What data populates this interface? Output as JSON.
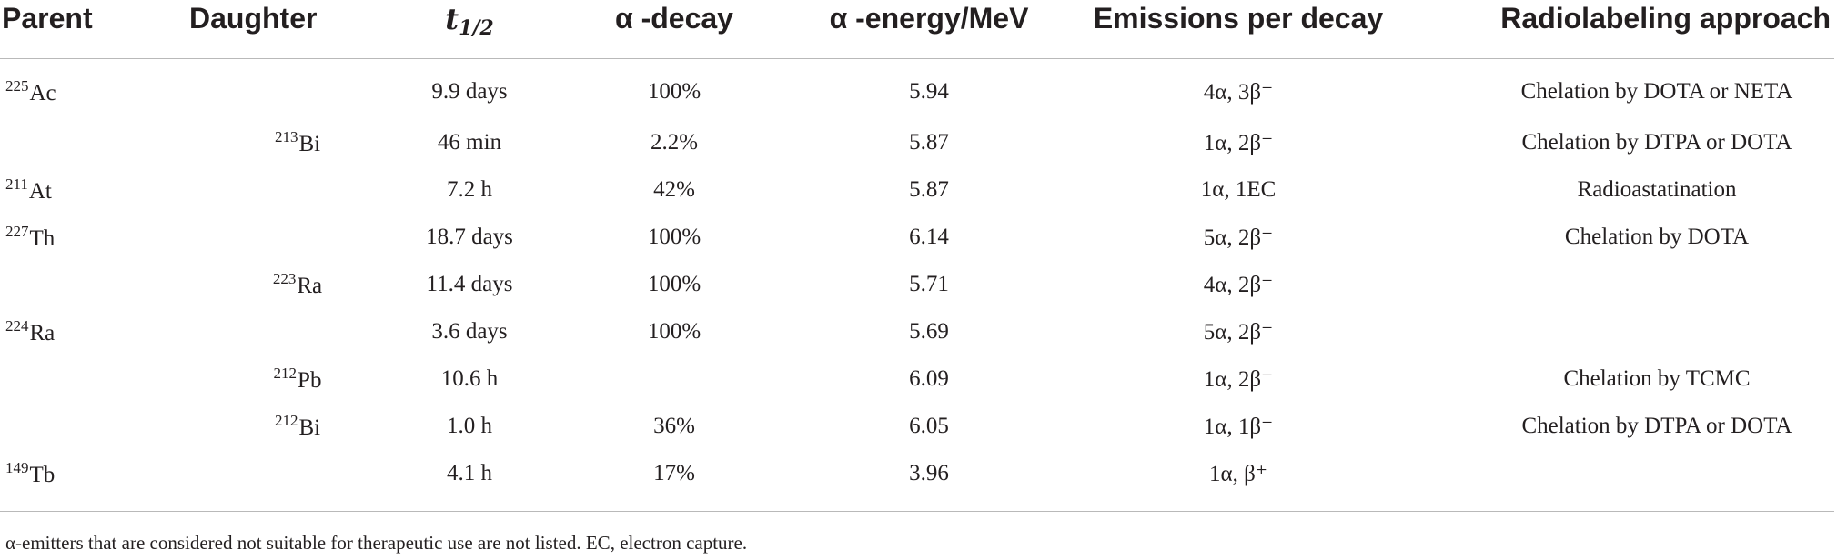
{
  "columns": {
    "parent": "Parent",
    "daughter": "Daughter",
    "half_life_symbol": "t",
    "half_life_sub": "1/2",
    "alpha_decay": "α -decay",
    "alpha_energy": "α -energy/MeV",
    "emissions": "Emissions per decay",
    "approach": "Radiolabeling approach"
  },
  "rows": [
    {
      "parent_mass": "225",
      "parent_el": "Ac",
      "daughter_mass": "",
      "daughter_el": "",
      "half_life": "9.9 days",
      "decay": "100%",
      "energy": "5.94",
      "emissions": "4α, 3β⁻",
      "approach": "Chelation by DOTA or NETA"
    },
    {
      "parent_mass": "",
      "parent_el": "",
      "daughter_mass": "213",
      "daughter_el": "Bi",
      "half_life": "46 min",
      "decay": "2.2%",
      "energy": "5.87",
      "emissions": "1α, 2β⁻",
      "approach": "Chelation by DTPA or DOTA"
    },
    {
      "parent_mass": "211",
      "parent_el": "At",
      "daughter_mass": "",
      "daughter_el": "",
      "half_life": "7.2 h",
      "decay": "42%",
      "energy": "5.87",
      "emissions": "1α, 1EC",
      "approach": "Radioastatination"
    },
    {
      "parent_mass": "227",
      "parent_el": "Th",
      "daughter_mass": "",
      "daughter_el": "",
      "half_life": "18.7 days",
      "decay": "100%",
      "energy": "6.14",
      "emissions": "5α, 2β⁻",
      "approach": "Chelation by DOTA"
    },
    {
      "parent_mass": "",
      "parent_el": "",
      "daughter_mass": "223",
      "daughter_el": "Ra",
      "half_life": "11.4 days",
      "decay": "100%",
      "energy": "5.71",
      "emissions": "4α, 2β⁻",
      "approach": ""
    },
    {
      "parent_mass": "224",
      "parent_el": "Ra",
      "daughter_mass": "",
      "daughter_el": "",
      "half_life": "3.6 days",
      "decay": "100%",
      "energy": "5.69",
      "emissions": "5α, 2β⁻",
      "approach": ""
    },
    {
      "parent_mass": "",
      "parent_el": "",
      "daughter_mass": "212",
      "daughter_el": "Pb",
      "half_life": "10.6 h",
      "decay": "",
      "energy": "6.09",
      "emissions": "1α, 2β⁻",
      "approach": "Chelation by TCMC"
    },
    {
      "parent_mass": "",
      "parent_el": "",
      "daughter_mass": "212",
      "daughter_el": "Bi",
      "half_life": "1.0 h",
      "decay": "36%",
      "energy": "6.05",
      "emissions": "1α, 1β⁻",
      "approach": "Chelation by DTPA or DOTA"
    },
    {
      "parent_mass": "149",
      "parent_el": "Tb",
      "daughter_mass": "",
      "daughter_el": "",
      "half_life": "4.1 h",
      "decay": "17%",
      "energy": "3.96",
      "emissions": "1α, β⁺",
      "approach": ""
    }
  ],
  "footnote": "α-emitters that are considered not suitable for therapeutic use are not listed. EC, electron capture."
}
